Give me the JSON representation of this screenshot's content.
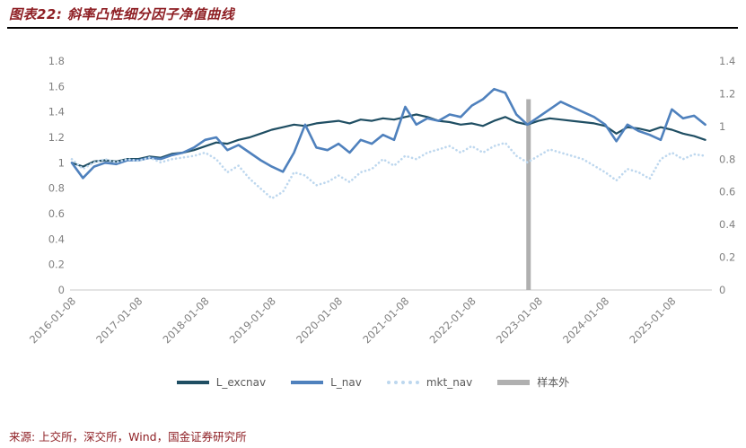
{
  "header": {
    "title": "图表22: 斜率凸性细分因子净值曲线"
  },
  "footer": {
    "source": "来源: 上交所，深交所，Wind，国金证券研究所"
  },
  "colors": {
    "caption_red": "#8e1f24",
    "axis_text": "#808080",
    "series_dark": "#1f4e63",
    "series_blue": "#4f81bd",
    "series_light": "#bdd7ee",
    "annotation_gray": "#b0b0b0"
  },
  "chart_data": {
    "type": "line",
    "title": "斜率凸性细分因子净值曲线",
    "xlabel": "",
    "ylabel": "",
    "grid": false,
    "legend_position": "bottom",
    "x_range": [
      2016.0,
      2025.6
    ],
    "left_axis": {
      "range": [
        0,
        1.8
      ],
      "ticks": [
        "1.8",
        "1.6",
        "1.4",
        "1.2",
        "1",
        "0.8",
        "0.6",
        "0.4",
        "0.2",
        "0"
      ]
    },
    "right_axis": {
      "range": [
        0,
        1.4
      ],
      "ticks": [
        "1.4",
        "1.2",
        "1",
        "0.8",
        "0.6",
        "0.4",
        "0.2",
        "0"
      ]
    },
    "x_tick_years": [
      2016,
      2017,
      2018,
      2019,
      2020,
      2021,
      2022,
      2023,
      2024,
      2025
    ],
    "x_tick_labels": [
      "2016-01-08",
      "2017-01-08",
      "2018-01-08",
      "2019-01-08",
      "2020-01-08",
      "2021-01-08",
      "2022-01-08",
      "2023-01-08",
      "2024-01-08",
      "2025-01-08"
    ],
    "x": [
      2016.0,
      2016.167,
      2016.333,
      2016.5,
      2016.667,
      2016.833,
      2017.0,
      2017.167,
      2017.333,
      2017.5,
      2017.667,
      2017.833,
      2018.0,
      2018.167,
      2018.333,
      2018.5,
      2018.667,
      2018.833,
      2019.0,
      2019.167,
      2019.333,
      2019.5,
      2019.667,
      2019.833,
      2020.0,
      2020.167,
      2020.333,
      2020.5,
      2020.667,
      2020.833,
      2021.0,
      2021.167,
      2021.333,
      2021.5,
      2021.667,
      2021.833,
      2022.0,
      2022.167,
      2022.333,
      2022.5,
      2022.667,
      2022.833,
      2023.0,
      2023.167,
      2023.333,
      2023.5,
      2023.667,
      2023.833,
      2024.0,
      2024.167,
      2024.333,
      2024.5,
      2024.667,
      2024.833,
      2025.0,
      2025.167,
      2025.333,
      2025.5
    ],
    "series": [
      {
        "name": "L_excnav",
        "axis": "left",
        "color": "#1f4e63",
        "style": "solid",
        "width": 2.2,
        "values": [
          1.0,
          0.97,
          1.01,
          1.02,
          1.01,
          1.03,
          1.03,
          1.05,
          1.04,
          1.07,
          1.08,
          1.1,
          1.13,
          1.16,
          1.15,
          1.18,
          1.2,
          1.23,
          1.26,
          1.28,
          1.3,
          1.29,
          1.31,
          1.32,
          1.33,
          1.31,
          1.34,
          1.33,
          1.35,
          1.34,
          1.36,
          1.38,
          1.36,
          1.33,
          1.32,
          1.3,
          1.31,
          1.29,
          1.33,
          1.36,
          1.32,
          1.3,
          1.33,
          1.35,
          1.34,
          1.33,
          1.32,
          1.31,
          1.29,
          1.23,
          1.28,
          1.27,
          1.25,
          1.28,
          1.26,
          1.23,
          1.21,
          1.18
        ]
      },
      {
        "name": "L_nav",
        "axis": "left",
        "color": "#4f81bd",
        "style": "solid",
        "width": 2.6,
        "values": [
          1.0,
          0.88,
          0.97,
          1.0,
          0.99,
          1.02,
          1.02,
          1.04,
          1.03,
          1.06,
          1.08,
          1.12,
          1.18,
          1.2,
          1.1,
          1.14,
          1.08,
          1.02,
          0.97,
          0.93,
          1.08,
          1.3,
          1.12,
          1.1,
          1.15,
          1.08,
          1.18,
          1.15,
          1.22,
          1.18,
          1.44,
          1.3,
          1.35,
          1.33,
          1.38,
          1.36,
          1.45,
          1.5,
          1.58,
          1.55,
          1.38,
          1.3,
          1.36,
          1.42,
          1.48,
          1.44,
          1.4,
          1.36,
          1.3,
          1.17,
          1.3,
          1.25,
          1.22,
          1.18,
          1.42,
          1.35,
          1.37,
          1.3
        ]
      },
      {
        "name": "mkt_nav",
        "axis": "right",
        "color": "#bdd7ee",
        "style": "dotted",
        "width": 2.6,
        "values": [
          0.8,
          0.74,
          0.78,
          0.8,
          0.78,
          0.8,
          0.79,
          0.81,
          0.78,
          0.8,
          0.81,
          0.82,
          0.84,
          0.8,
          0.72,
          0.76,
          0.68,
          0.62,
          0.56,
          0.6,
          0.72,
          0.7,
          0.64,
          0.66,
          0.7,
          0.66,
          0.72,
          0.74,
          0.8,
          0.76,
          0.82,
          0.8,
          0.84,
          0.86,
          0.88,
          0.84,
          0.88,
          0.84,
          0.88,
          0.9,
          0.82,
          0.78,
          0.82,
          0.86,
          0.84,
          0.82,
          0.8,
          0.76,
          0.72,
          0.67,
          0.74,
          0.72,
          0.68,
          0.8,
          0.84,
          0.8,
          0.83,
          0.82
        ]
      }
    ],
    "annotation": {
      "name": "样本外",
      "type": "vertical-bar",
      "x": 2022.85,
      "top_value_left_axis": 1.5,
      "color": "#b0b0b0",
      "width": 5
    },
    "legend": [
      {
        "label": "L_excnav",
        "color": "#1f4e63",
        "shape": "line"
      },
      {
        "label": "L_nav",
        "color": "#4f81bd",
        "shape": "line"
      },
      {
        "label": "mkt_nav",
        "color": "#bdd7ee",
        "shape": "dotted-line"
      },
      {
        "label": "样本外",
        "color": "#b0b0b0",
        "shape": "thick-line"
      }
    ]
  }
}
